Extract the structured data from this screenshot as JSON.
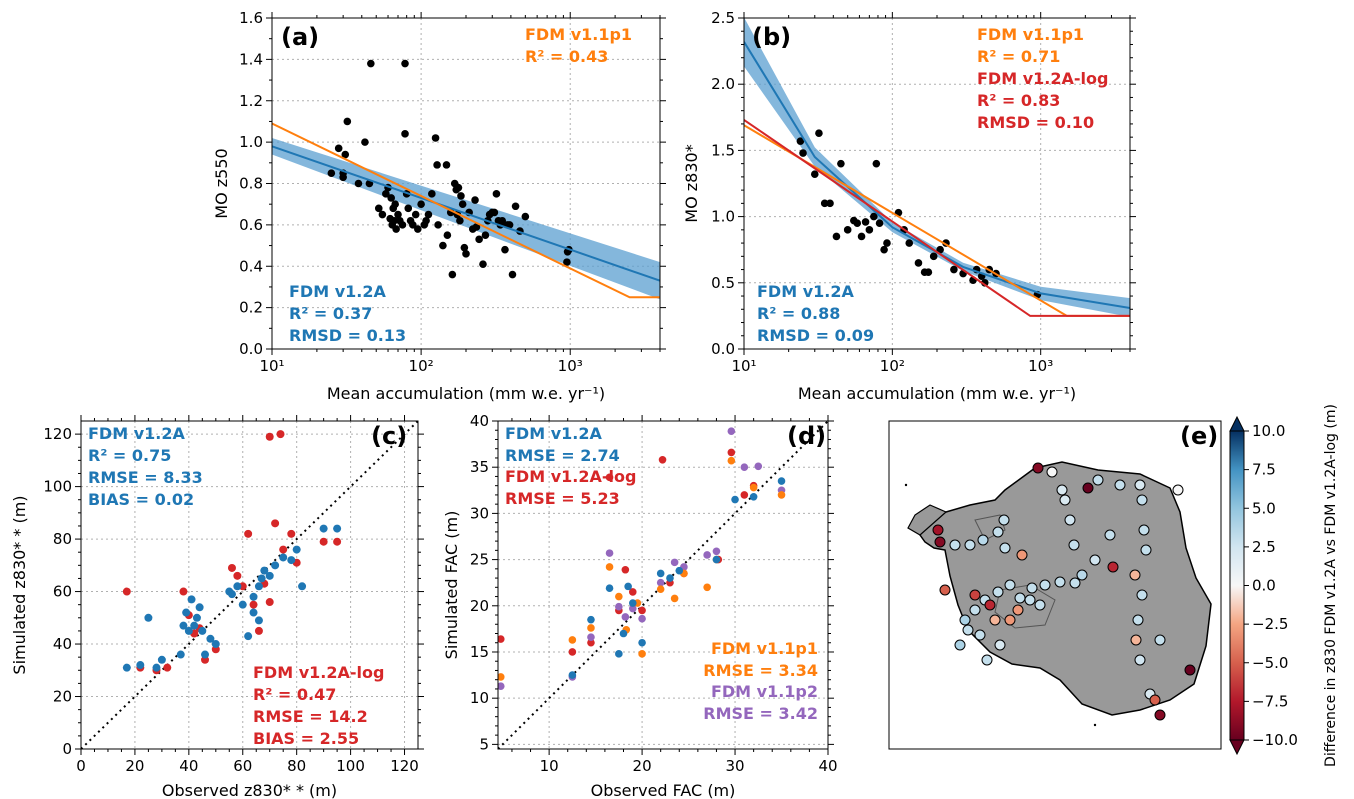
{
  "colors": {
    "v12a": "#1f77b4",
    "v11p1": "#ff7f0e",
    "v12alog": "#d62728",
    "v11p2": "#9467bd",
    "band": "#5b9fd0",
    "land": "#999999"
  },
  "chart_data": [
    {
      "panel": "(a)",
      "type": "scatter",
      "xlabel": "Mean accumulation (mm w.e. yr⁻¹)",
      "ylabel": "MO z550",
      "xscale": "log",
      "xlim": [
        10,
        4000
      ],
      "ylim": [
        0,
        1.6
      ],
      "xticks": [
        "10¹",
        "10²",
        "10³"
      ],
      "yticks": [
        "0.0",
        "0.2",
        "0.4",
        "0.6",
        "0.8",
        "1.0",
        "1.2",
        "1.4",
        "1.6"
      ],
      "annotations": [
        {
          "line1": "FDM v1.1p1",
          "line2": "R² = 0.43",
          "color": "#ff7f0e"
        },
        {
          "line1": "FDM v1.2A",
          "line2": "R² = 0.37",
          "line3": "RMSD = 0.13",
          "color": "#1f77b4"
        }
      ],
      "points": [
        [
          25,
          0.85
        ],
        [
          28,
          0.97
        ],
        [
          30,
          0.83
        ],
        [
          30,
          0.85
        ],
        [
          31,
          0.94
        ],
        [
          32,
          1.1
        ],
        [
          38,
          0.8
        ],
        [
          42,
          1.0
        ],
        [
          45,
          0.8
        ],
        [
          46,
          1.38
        ],
        [
          52,
          0.68
        ],
        [
          55,
          0.65
        ],
        [
          58,
          0.75
        ],
        [
          60,
          0.78
        ],
        [
          62,
          0.63
        ],
        [
          63,
          0.73
        ],
        [
          64,
          0.6
        ],
        [
          65,
          0.68
        ],
        [
          66,
          0.62
        ],
        [
          67,
          0.7
        ],
        [
          68,
          0.58
        ],
        [
          70,
          0.65
        ],
        [
          72,
          0.62
        ],
        [
          75,
          0.6
        ],
        [
          78,
          1.04
        ],
        [
          78,
          1.38
        ],
        [
          80,
          0.75
        ],
        [
          82,
          0.68
        ],
        [
          85,
          0.62
        ],
        [
          88,
          0.6
        ],
        [
          92,
          0.65
        ],
        [
          95,
          0.58
        ],
        [
          100,
          0.7
        ],
        [
          105,
          0.6
        ],
        [
          108,
          0.62
        ],
        [
          112,
          0.65
        ],
        [
          118,
          0.75
        ],
        [
          125,
          1.02
        ],
        [
          128,
          0.89
        ],
        [
          130,
          0.6
        ],
        [
          140,
          0.5
        ],
        [
          148,
          0.89
        ],
        [
          150,
          0.55
        ],
        [
          158,
          0.66
        ],
        [
          162,
          0.36
        ],
        [
          168,
          0.8
        ],
        [
          172,
          0.77
        ],
        [
          175,
          0.65
        ],
        [
          178,
          0.78
        ],
        [
          182,
          0.62
        ],
        [
          185,
          0.74
        ],
        [
          190,
          0.7
        ],
        [
          195,
          0.49
        ],
        [
          200,
          0.46
        ],
        [
          210,
          0.66
        ],
        [
          222,
          0.58
        ],
        [
          230,
          0.72
        ],
        [
          235,
          0.59
        ],
        [
          245,
          0.53
        ],
        [
          260,
          0.41
        ],
        [
          270,
          0.55
        ],
        [
          280,
          0.62
        ],
        [
          288,
          0.65
        ],
        [
          300,
          0.66
        ],
        [
          310,
          0.66
        ],
        [
          320,
          0.75
        ],
        [
          330,
          0.62
        ],
        [
          340,
          0.6
        ],
        [
          350,
          0.62
        ],
        [
          365,
          0.48
        ],
        [
          380,
          0.6
        ],
        [
          392,
          0.6
        ],
        [
          410,
          0.36
        ],
        [
          430,
          0.69
        ],
        [
          460,
          0.57
        ],
        [
          500,
          0.64
        ],
        [
          950,
          0.42
        ],
        [
          960,
          0.47
        ],
        [
          980,
          0.48
        ]
      ],
      "fit_v12a": {
        "x": [
          10,
          4000
        ],
        "y": [
          0.98,
          0.33
        ],
        "band_upper": [
          1.02,
          0.42
        ],
        "band_lower": [
          0.94,
          0.24
        ]
      },
      "fit_v11p1": {
        "x": [
          10,
          2500,
          4000
        ],
        "y": [
          1.09,
          0.25,
          0.25
        ]
      }
    },
    {
      "panel": "(b)",
      "type": "scatter",
      "xlabel": "Mean accumulation (mm w.e. yr⁻¹)",
      "ylabel": "MO z830*",
      "xscale": "log",
      "xlim": [
        10,
        4000
      ],
      "ylim": [
        0,
        2.5
      ],
      "xticks": [
        "10¹",
        "10²",
        "10³"
      ],
      "yticks": [
        "0.0",
        "0.5",
        "1.0",
        "1.5",
        "2.0",
        "2.5"
      ],
      "annotations": [
        {
          "line1": "FDM v1.1p1",
          "line2": "R² = 0.71",
          "color": "#ff7f0e"
        },
        {
          "line1": "FDM v1.2A-log",
          "line2": "R² = 0.83",
          "line3": "RMSD = 0.10",
          "color": "#d62728"
        },
        {
          "line1": "FDM v1.2A",
          "line2": "R² = 0.88",
          "line3": "RMSD = 0.09",
          "color": "#1f77b4"
        }
      ],
      "points": [
        [
          24,
          1.57
        ],
        [
          25,
          1.48
        ],
        [
          30,
          1.32
        ],
        [
          32,
          1.63
        ],
        [
          35,
          1.1
        ],
        [
          38,
          1.1
        ],
        [
          42,
          0.85
        ],
        [
          45,
          1.4
        ],
        [
          50,
          0.9
        ],
        [
          55,
          0.97
        ],
        [
          58,
          0.95
        ],
        [
          62,
          0.85
        ],
        [
          66,
          0.96
        ],
        [
          70,
          0.9
        ],
        [
          75,
          1.0
        ],
        [
          78,
          1.4
        ],
        [
          82,
          0.95
        ],
        [
          88,
          0.75
        ],
        [
          92,
          0.8
        ],
        [
          110,
          1.03
        ],
        [
          120,
          0.9
        ],
        [
          130,
          0.8
        ],
        [
          150,
          0.65
        ],
        [
          165,
          0.58
        ],
        [
          175,
          0.58
        ],
        [
          190,
          0.7
        ],
        [
          210,
          0.75
        ],
        [
          230,
          0.8
        ],
        [
          260,
          0.6
        ],
        [
          300,
          0.57
        ],
        [
          350,
          0.52
        ],
        [
          370,
          0.6
        ],
        [
          400,
          0.55
        ],
        [
          420,
          0.5
        ],
        [
          450,
          0.6
        ],
        [
          500,
          0.57
        ],
        [
          950,
          0.41
        ]
      ],
      "fit_v12a": {
        "x": [
          10,
          30,
          100,
          300,
          1000,
          4000
        ],
        "y": [
          2.32,
          1.45,
          0.92,
          0.62,
          0.42,
          0.31
        ]
      },
      "fit_v11p1": {
        "x": [
          10,
          1500,
          4000
        ],
        "y": [
          1.69,
          0.25,
          0.25
        ]
      },
      "fit_v12alog": {
        "x": [
          10,
          850,
          4000
        ],
        "y": [
          1.73,
          0.25,
          0.25
        ]
      }
    },
    {
      "panel": "(c)",
      "type": "scatter",
      "xlabel": "Observed z830* * (m)",
      "ylabel": "Simulated z830* * (m)",
      "xlim": [
        0,
        125
      ],
      "ylim": [
        0,
        125
      ],
      "xticks": [
        "0",
        "20",
        "40",
        "60",
        "80",
        "100",
        "120"
      ],
      "yticks": [
        "0",
        "20",
        "40",
        "60",
        "80",
        "100",
        "120"
      ],
      "annotations": [
        {
          "line1": "FDM v1.2A",
          "line2": "R² = 0.75",
          "line3": "RMSE = 8.33",
          "line4": "BIAS = 0.02",
          "color": "#1f77b4"
        },
        {
          "line1": "FDM v1.2A-log",
          "line2": "R² = 0.47",
          "line3": "RMSE = 14.2",
          "line4": "BIAS = 2.55",
          "color": "#d62728"
        }
      ],
      "series_v12a": [
        [
          17,
          31
        ],
        [
          22,
          32
        ],
        [
          25,
          50
        ],
        [
          28,
          31
        ],
        [
          30,
          34
        ],
        [
          37,
          36
        ],
        [
          38,
          47
        ],
        [
          39,
          52
        ],
        [
          40,
          45
        ],
        [
          41,
          57
        ],
        [
          42,
          47
        ],
        [
          43,
          50
        ],
        [
          44,
          54
        ],
        [
          45,
          45
        ],
        [
          46,
          36
        ],
        [
          48,
          42
        ],
        [
          50,
          40
        ],
        [
          55,
          60
        ],
        [
          56,
          59
        ],
        [
          58,
          62
        ],
        [
          60,
          55
        ],
        [
          62,
          43
        ],
        [
          64,
          58
        ],
        [
          66,
          62
        ],
        [
          67,
          65
        ],
        [
          68,
          68
        ],
        [
          70,
          66
        ],
        [
          72,
          70
        ],
        [
          75,
          73
        ],
        [
          78,
          72
        ],
        [
          80,
          76
        ],
        [
          82,
          62
        ],
        [
          90,
          84
        ],
        [
          95,
          84
        ],
        [
          64,
          52
        ],
        [
          66,
          49
        ]
      ],
      "series_v12alog": [
        [
          17,
          60
        ],
        [
          22,
          31
        ],
        [
          28,
          30
        ],
        [
          32,
          31
        ],
        [
          38,
          60
        ],
        [
          40,
          51
        ],
        [
          42,
          44
        ],
        [
          44,
          46
        ],
        [
          46,
          34
        ],
        [
          50,
          38
        ],
        [
          56,
          69
        ],
        [
          58,
          66
        ],
        [
          62,
          82
        ],
        [
          64,
          55
        ],
        [
          66,
          45
        ],
        [
          68,
          63
        ],
        [
          70,
          119
        ],
        [
          72,
          86
        ],
        [
          74,
          120
        ],
        [
          75,
          76
        ],
        [
          78,
          82
        ],
        [
          80,
          71
        ],
        [
          90,
          79
        ],
        [
          95,
          79
        ],
        [
          60,
          62
        ],
        [
          70,
          56
        ]
      ]
    },
    {
      "panel": "(d)",
      "type": "scatter",
      "xlabel": "Observed FAC (m)",
      "ylabel": "Simulated FAC (m)",
      "xlim": [
        4.5,
        40
      ],
      "ylim": [
        4.5,
        40
      ],
      "xticks": [
        "10",
        "20",
        "30",
        "40"
      ],
      "yticks": [
        "5",
        "10",
        "15",
        "20",
        "25",
        "30",
        "35",
        "40"
      ],
      "annotations": [
        {
          "line1": "FDM v1.2A",
          "line2": "RMSE = 2.74",
          "color": "#1f77b4"
        },
        {
          "line1": "FDM v1.2A-log",
          "line2": "RMSE = 5.23",
          "color": "#d62728"
        },
        {
          "line1": "FDM v1.1p1",
          "line2": "RMSE = 3.34",
          "color": "#ff7f0e"
        },
        {
          "line1": "FDM v1.1p2",
          "line2": "RMSE = 3.42",
          "color": "#9467bd"
        }
      ],
      "series_v12a": [
        [
          12.5,
          12.5
        ],
        [
          14.5,
          18.5
        ],
        [
          16.5,
          21.9
        ],
        [
          17.5,
          14.8
        ],
        [
          18,
          17
        ],
        [
          18.5,
          22.1
        ],
        [
          19,
          20.3
        ],
        [
          20,
          16
        ],
        [
          22,
          23.5
        ],
        [
          23,
          23
        ],
        [
          24,
          23.8
        ],
        [
          28,
          25
        ],
        [
          30,
          31.5
        ],
        [
          32,
          31.8
        ],
        [
          35,
          33.5
        ]
      ],
      "series_v12alog": [
        [
          4.8,
          16.4
        ],
        [
          12.5,
          15
        ],
        [
          14.5,
          16
        ],
        [
          16.5,
          33.9
        ],
        [
          17.5,
          19.5
        ],
        [
          18.2,
          23.9
        ],
        [
          19,
          21.5
        ],
        [
          20,
          19.5
        ],
        [
          22.2,
          35.8
        ],
        [
          23,
          22.5
        ],
        [
          24.5,
          23.5
        ],
        [
          28.2,
          25
        ],
        [
          29.6,
          36.6
        ],
        [
          31,
          32
        ],
        [
          32,
          33
        ]
      ],
      "series_v11p1": [
        [
          4.8,
          12.3
        ],
        [
          12.5,
          16.3
        ],
        [
          14.5,
          17.6
        ],
        [
          16.5,
          24.2
        ],
        [
          17.5,
          21
        ],
        [
          18.3,
          17.4
        ],
        [
          19.5,
          20.3
        ],
        [
          20,
          14.8
        ],
        [
          22,
          21.8
        ],
        [
          23.5,
          20.8
        ],
        [
          24.5,
          23.5
        ],
        [
          27,
          22
        ],
        [
          28,
          25
        ],
        [
          29.6,
          35.7
        ],
        [
          32,
          32.8
        ],
        [
          35,
          32
        ]
      ],
      "series_v11p2": [
        [
          4.8,
          11.3
        ],
        [
          12.5,
          12.3
        ],
        [
          14.5,
          16.6
        ],
        [
          16.5,
          25.7
        ],
        [
          17.5,
          19.9
        ],
        [
          18.2,
          18.8
        ],
        [
          19,
          19.7
        ],
        [
          20,
          18.6
        ],
        [
          22,
          22.5
        ],
        [
          23.5,
          24.7
        ],
        [
          24.5,
          24.2
        ],
        [
          27,
          25.5
        ],
        [
          28,
          25.9
        ],
        [
          29.6,
          38.9
        ],
        [
          31,
          35
        ],
        [
          32.5,
          35.1
        ],
        [
          35,
          32.5
        ]
      ]
    },
    {
      "panel": "(e)",
      "type": "map",
      "colorbar_label": "Difference in z830 FDM v1.2A vs FDM v1.2A-log (m)",
      "colorbar_ticks": [
        "10.0",
        "7.5",
        "5.0",
        "2.5",
        "0.0",
        "−2.5",
        "−5.0",
        "−7.5",
        "−10.0"
      ],
      "vmin": -10,
      "vmax": 10
    }
  ]
}
